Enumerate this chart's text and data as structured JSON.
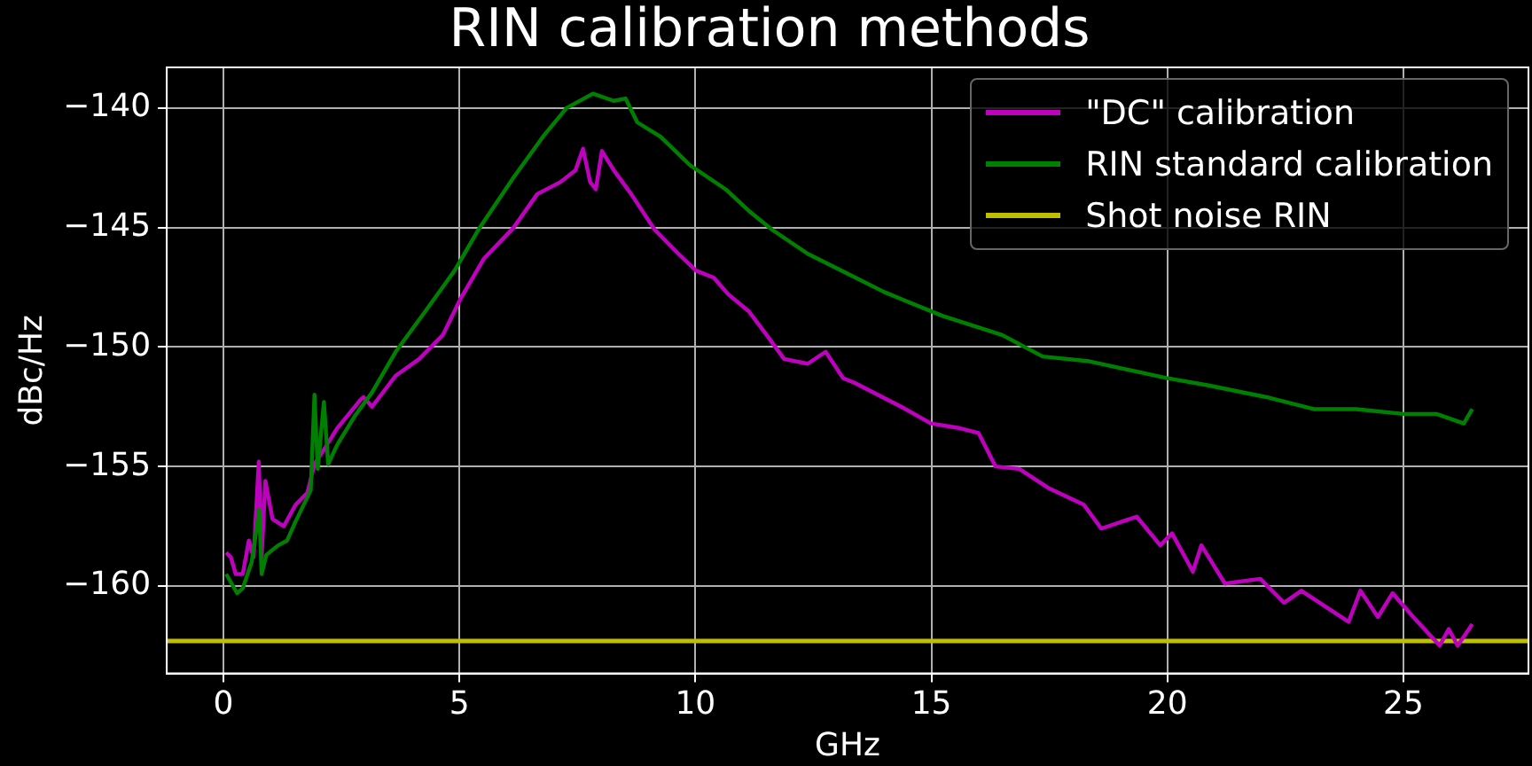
{
  "chart_data": {
    "type": "line",
    "title": "RIN calibration methods",
    "xlabel": "GHz",
    "ylabel": "dBc/Hz",
    "xlim": [
      -1.2,
      27.65
    ],
    "xticks": [
      0,
      5,
      10,
      15,
      20,
      25
    ],
    "ylim": [
      -163.66,
      -138.3
    ],
    "yticks": [
      {
        "value": -160,
        "label": "−160"
      },
      {
        "value": -155,
        "label": "−155"
      },
      {
        "value": -150,
        "label": "−150"
      },
      {
        "value": -145,
        "label": "−145"
      },
      {
        "value": -140,
        "label": "−140"
      }
    ],
    "grid": true,
    "legend": "top right",
    "marker": "none",
    "line_style": "solid",
    "series": [
      {
        "name": "\"DC\" calibration",
        "color": "#bf00bf",
        "x": [
          0.06,
          0.16,
          0.26,
          0.41,
          0.54,
          0.64,
          0.75,
          0.81,
          0.89,
          1.04,
          1.28,
          1.53,
          1.78,
          1.93,
          2.16,
          2.41,
          2.91,
          2.97,
          3.15,
          3.65,
          4.15,
          4.65,
          5.02,
          5.52,
          6.15,
          6.65,
          7.14,
          7.46,
          7.62,
          7.77,
          7.89,
          8.02,
          8.27,
          8.64,
          9.14,
          9.64,
          10.01,
          10.39,
          10.7,
          11.13,
          11.51,
          11.88,
          12.38,
          12.76,
          13.13,
          13.37,
          14.36,
          14.99,
          15.61,
          16.0,
          16.36,
          16.86,
          17.48,
          18.23,
          18.6,
          19.35,
          19.85,
          20.1,
          20.54,
          20.72,
          21.22,
          21.97,
          22.47,
          22.84,
          23.84,
          24.09,
          24.46,
          24.77,
          25.21,
          25.77,
          25.96,
          26.15,
          26.46
        ],
        "values": [
          -158.6,
          -158.8,
          -159.5,
          -159.5,
          -158.1,
          -158.8,
          -154.8,
          -158.8,
          -155.6,
          -157.2,
          -157.5,
          -156.6,
          -156.1,
          -154.9,
          -154.2,
          -153.4,
          -152.2,
          -152.1,
          -152.5,
          -151.2,
          -150.5,
          -149.5,
          -148.0,
          -146.3,
          -145.0,
          -143.6,
          -143.1,
          -142.6,
          -141.7,
          -143.1,
          -143.4,
          -141.8,
          -142.6,
          -143.6,
          -145.1,
          -146.1,
          -146.8,
          -147.1,
          -147.8,
          -148.5,
          -149.5,
          -150.5,
          -150.7,
          -150.2,
          -151.3,
          -151.5,
          -152.5,
          -153.2,
          -153.4,
          -153.6,
          -155.0,
          -155.1,
          -155.9,
          -156.6,
          -157.6,
          -157.1,
          -158.3,
          -157.8,
          -159.4,
          -158.3,
          -159.9,
          -159.7,
          -160.7,
          -160.2,
          -161.5,
          -160.2,
          -161.3,
          -160.3,
          -161.3,
          -162.5,
          -161.8,
          -162.5,
          -161.6
        ]
      },
      {
        "name": "RIN standard calibration",
        "color": "#008000",
        "x": [
          0.06,
          0.29,
          0.41,
          0.6,
          0.76,
          0.81,
          0.91,
          1.16,
          1.35,
          1.53,
          1.85,
          1.93,
          2.0,
          2.13,
          2.22,
          2.41,
          2.78,
          3.15,
          3.65,
          4.28,
          4.9,
          5.4,
          6.15,
          6.77,
          7.27,
          7.83,
          8.27,
          8.52,
          8.77,
          9.26,
          9.89,
          10.64,
          11.13,
          11.63,
          12.38,
          13.19,
          14.0,
          15.24,
          16.5,
          17.36,
          18.35,
          19.98,
          20.85,
          22.1,
          23.1,
          24.0,
          25.0,
          25.7,
          26.28,
          26.46
        ],
        "values": [
          -159.5,
          -160.3,
          -160.1,
          -159.0,
          -156.8,
          -159.5,
          -158.7,
          -158.3,
          -158.1,
          -157.3,
          -156.0,
          -152.0,
          -155.1,
          -152.3,
          -154.9,
          -154.1,
          -152.9,
          -151.9,
          -150.2,
          -148.5,
          -146.8,
          -145.1,
          -142.9,
          -141.2,
          -140.0,
          -139.4,
          -139.7,
          -139.6,
          -140.6,
          -141.2,
          -142.4,
          -143.4,
          -144.3,
          -145.1,
          -146.1,
          -146.9,
          -147.7,
          -148.7,
          -149.5,
          -150.4,
          -150.6,
          -151.3,
          -151.6,
          -152.1,
          -152.6,
          -152.6,
          -152.8,
          -152.8,
          -153.2,
          -152.6
        ]
      }
    ],
    "ref_lines": [
      {
        "axis": "y",
        "value": -162.3,
        "label": "Shot noise RIN",
        "color": "#bfbf00"
      }
    ]
  }
}
